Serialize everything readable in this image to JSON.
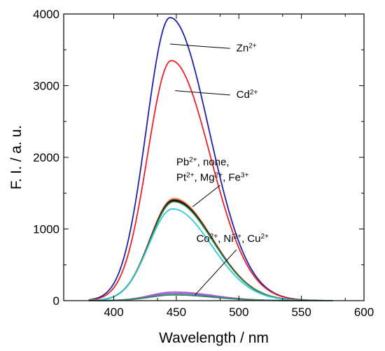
{
  "chart_data": {
    "type": "line",
    "title": "",
    "xlabel": "Wavelength / nm",
    "ylabel": "F. I. / a. u.",
    "xlim": [
      360,
      600
    ],
    "ylim": [
      0,
      4000
    ],
    "xticks": [
      400,
      450,
      500,
      550,
      600
    ],
    "yticks": [
      0,
      1000,
      2000,
      3000,
      4000
    ],
    "grid": false,
    "series": [
      {
        "name": "Zn2+",
        "color": "#1f1fa8",
        "peak_x": 445,
        "peak_y": 3950
      },
      {
        "name": "Cd2+",
        "color": "#e8202a",
        "peak_x": 446,
        "peak_y": 3350
      },
      {
        "name": "",
        "color": "#f4a460",
        "peak_x": 448,
        "peak_y": 1430
      },
      {
        "name": "",
        "color": "#7a1f1f",
        "peak_x": 448,
        "peak_y": 1410
      },
      {
        "name": "",
        "color": "#000000",
        "peak_x": 448,
        "peak_y": 1395
      },
      {
        "name": "",
        "color": "#2e8b57",
        "peak_x": 448,
        "peak_y": 1380
      },
      {
        "name": "",
        "color": "#2fc9d6",
        "peak_x": 447,
        "peak_y": 1280
      },
      {
        "name": "",
        "color": "#c050c0",
        "peak_x": 448,
        "peak_y": 120
      },
      {
        "name": "",
        "color": "#7070d0",
        "peak_x": 448,
        "peak_y": 100
      },
      {
        "name": "",
        "color": "#2e8b57",
        "peak_x": 448,
        "peak_y": 80
      }
    ],
    "annotations": [
      {
        "key": "zn",
        "parts": [
          [
            "Zn",
            ""
          ],
          [
            "2+",
            "sup"
          ]
        ],
        "text_x": 498,
        "text_y": 3480,
        "line_from": [
          445,
          3580
        ],
        "line_to": [
          493,
          3520
        ]
      },
      {
        "key": "cd",
        "parts": [
          [
            "Cd",
            ""
          ],
          [
            "2+",
            "sup"
          ]
        ],
        "text_x": 498,
        "text_y": 2830,
        "line_from": [
          449,
          2930
        ],
        "line_to": [
          493,
          2870
        ]
      },
      {
        "key": "pb",
        "lines": [
          [
            [
              "Pb",
              ""
            ],
            [
              "2+",
              "sup"
            ],
            [
              ", none,",
              ""
            ]
          ],
          [
            [
              "Pt",
              ""
            ],
            [
              "2+",
              "sup"
            ],
            [
              ", Mg",
              ""
            ],
            [
              "2+",
              "sup"
            ],
            [
              ", Fe",
              ""
            ],
            [
              "3+",
              "sup"
            ]
          ]
        ],
        "text_x": 450,
        "text_y": 1890,
        "line_from": [
          463,
          1310
        ],
        "line_to": [
          485,
          1610
        ]
      },
      {
        "key": "co",
        "parts": [
          [
            "Co",
            ""
          ],
          [
            "2+",
            "sup"
          ],
          [
            ", Ni",
            ""
          ],
          [
            "2+",
            "sup"
          ],
          [
            ", Cu",
            ""
          ],
          [
            "2+",
            "sup"
          ]
        ],
        "text_x": 466,
        "text_y": 820,
        "line_from": [
          465,
          80
        ],
        "line_to": [
          498,
          710
        ]
      }
    ]
  }
}
